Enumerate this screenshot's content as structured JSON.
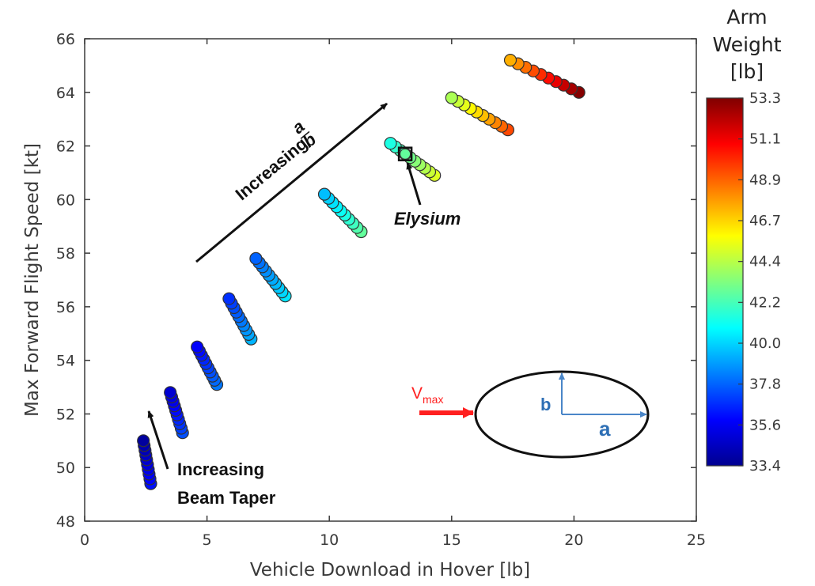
{
  "chart_data": {
    "type": "scatter",
    "xlabel": "Vehicle Download in Hover [lb]",
    "ylabel": "Max Forward Flight Speed [kt]",
    "xlim": [
      0,
      25
    ],
    "ylim": [
      48,
      66
    ],
    "xticks": [
      0,
      5,
      10,
      15,
      20,
      25
    ],
    "yticks": [
      48,
      50,
      52,
      54,
      56,
      58,
      60,
      62,
      64,
      66
    ],
    "grid": false,
    "colorbar": {
      "title_lines": [
        "Arm",
        "Weight",
        "[lb]"
      ],
      "min": 33.4,
      "max": 53.3,
      "ticks": [
        "53.3",
        "51.1",
        "48.9",
        "46.7",
        "44.4",
        "42.2",
        "40.0",
        "37.8",
        "35.6",
        "33.4"
      ],
      "colormap": "jet"
    },
    "clusters": [
      {
        "x_start": 2.4,
        "y_start": 51.0,
        "x_end": 2.7,
        "y_end": 49.4,
        "count": 10,
        "arm_weight_start": 34.0,
        "arm_weight_end": 36.2
      },
      {
        "x_start": 3.5,
        "y_start": 52.8,
        "x_end": 4.0,
        "y_end": 51.3,
        "count": 10,
        "arm_weight_start": 35.0,
        "arm_weight_end": 37.4
      },
      {
        "x_start": 4.6,
        "y_start": 54.5,
        "x_end": 5.4,
        "y_end": 53.1,
        "count": 10,
        "arm_weight_start": 35.8,
        "arm_weight_end": 38.2
      },
      {
        "x_start": 5.9,
        "y_start": 56.3,
        "x_end": 6.8,
        "y_end": 54.8,
        "count": 10,
        "arm_weight_start": 36.8,
        "arm_weight_end": 39.4
      },
      {
        "x_start": 7.0,
        "y_start": 57.8,
        "x_end": 8.2,
        "y_end": 56.4,
        "count": 10,
        "arm_weight_start": 37.8,
        "arm_weight_end": 40.4
      },
      {
        "x_start": 9.8,
        "y_start": 60.2,
        "x_end": 11.3,
        "y_end": 58.8,
        "count": 10,
        "arm_weight_start": 39.6,
        "arm_weight_end": 42.8
      },
      {
        "x_start": 12.5,
        "y_start": 62.1,
        "x_end": 14.3,
        "y_end": 60.9,
        "count": 10,
        "arm_weight_start": 41.4,
        "arm_weight_end": 45.2
      },
      {
        "x_start": 15.0,
        "y_start": 63.8,
        "x_end": 17.3,
        "y_end": 62.6,
        "count": 10,
        "arm_weight_start": 44.2,
        "arm_weight_end": 49.4
      },
      {
        "x_start": 17.4,
        "y_start": 65.2,
        "x_end": 20.2,
        "y_end": 64.0,
        "count": 10,
        "arm_weight_start": 47.4,
        "arm_weight_end": 53.2
      }
    ],
    "highlight": {
      "label": "Elysium",
      "x": 13.1,
      "y": 61.7,
      "arm_weight": 42.8
    },
    "annotations": {
      "increasing_ab": "Increasing",
      "ab_numerator": "a",
      "ab_denominator": "b",
      "taper_line1": "Increasing",
      "taper_line2": "Beam Taper",
      "elysium": "Elysium",
      "vmax": "V",
      "vmax_sub": "max",
      "ellipse_a": "a",
      "ellipse_b": "b"
    },
    "colors": {
      "axis": "#3a3a3a",
      "vmax_arrow": "#ff2020",
      "ellipse_axes": "#4a86c8",
      "ellipse_text": "#2e6fb5"
    }
  }
}
